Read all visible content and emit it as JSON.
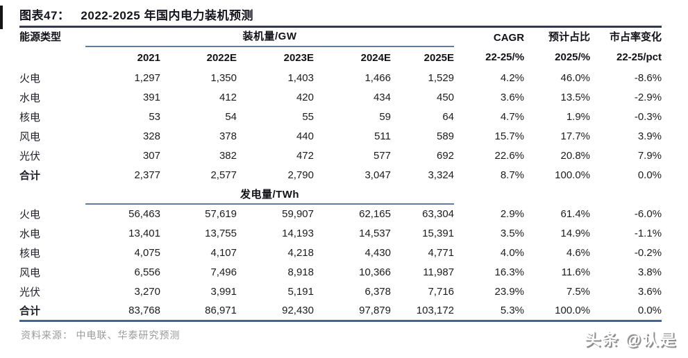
{
  "page": {
    "title_label": "图表47：",
    "title": "2022-2025 年国内电力装机预测",
    "source": "资料来源： 中电联、华泰研究预测",
    "watermark": "头条 @认是"
  },
  "colors": {
    "title_rule": "#2b3a55",
    "section_rule": "#5f7ca0",
    "bottom_rule": "#3c64a0",
    "source_text": "#9a9a9a",
    "text": "#1b1b1b"
  },
  "table": {
    "row_header": "能源类型",
    "year_headers": [
      "2021",
      "2022E",
      "2023E",
      "2024E",
      "2025E"
    ],
    "metric_groups": [
      "CAGR",
      "预计占比",
      "市占率变化"
    ],
    "metric_headers": [
      "22-25/%",
      "2025/%",
      "22-25/pct"
    ],
    "sections": [
      {
        "name": "装机量/GW",
        "rows": [
          {
            "label": "火电",
            "values": [
              "1,297",
              "1,350",
              "1,403",
              "1,466",
              "1,529",
              "4.2%",
              "46.0%",
              "-8.6%"
            ]
          },
          {
            "label": "水电",
            "values": [
              "391",
              "412",
              "420",
              "434",
              "450",
              "3.6%",
              "13.5%",
              "-2.9%"
            ]
          },
          {
            "label": "核电",
            "values": [
              "53",
              "54",
              "55",
              "59",
              "64",
              "4.7%",
              "1.9%",
              "-0.3%"
            ]
          },
          {
            "label": "风电",
            "values": [
              "328",
              "378",
              "440",
              "511",
              "589",
              "15.7%",
              "17.7%",
              "3.9%"
            ]
          },
          {
            "label": "光伏",
            "values": [
              "307",
              "382",
              "472",
              "577",
              "692",
              "22.6%",
              "20.8%",
              "7.9%"
            ]
          },
          {
            "label": "合计",
            "bold": true,
            "values": [
              "2,377",
              "2,577",
              "2,790",
              "3,047",
              "3,324",
              "8.7%",
              "100.0%",
              "0.0%"
            ]
          }
        ]
      },
      {
        "name": "发电量/TWh",
        "rows": [
          {
            "label": "火电",
            "values": [
              "56,463",
              "57,619",
              "59,907",
              "62,165",
              "63,304",
              "2.9%",
              "61.4%",
              "-6.0%"
            ]
          },
          {
            "label": "水电",
            "values": [
              "13,401",
              "13,755",
              "14,193",
              "14,537",
              "15,391",
              "3.5%",
              "14.9%",
              "-1.1%"
            ]
          },
          {
            "label": "核电",
            "values": [
              "4,075",
              "4,107",
              "4,218",
              "4,430",
              "4,771",
              "4.0%",
              "4.6%",
              "-0.2%"
            ]
          },
          {
            "label": "风电",
            "values": [
              "6,556",
              "7,496",
              "8,918",
              "10,366",
              "11,987",
              "16.3%",
              "11.6%",
              "3.8%"
            ]
          },
          {
            "label": "光伏",
            "values": [
              "3,270",
              "3,991",
              "5,191",
              "6,378",
              "7,716",
              "23.9%",
              "7.5%",
              "3.6%"
            ]
          },
          {
            "label": "合计",
            "bold": true,
            "values": [
              "83,768",
              "86,971",
              "92,430",
              "97,879",
              "103,172",
              "5.3%",
              "100.0%",
              "0.0%"
            ]
          }
        ]
      }
    ]
  }
}
